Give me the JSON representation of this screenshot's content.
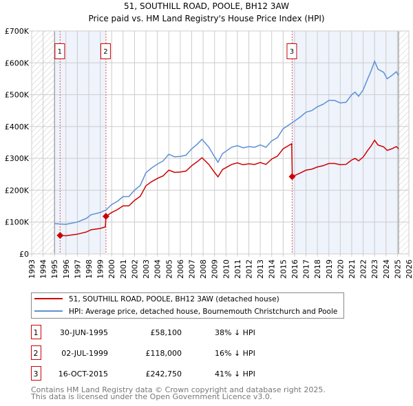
{
  "chart_data": {
    "type": "line",
    "title": "51, SOUTHILL ROAD, POOLE, BH12 3AW",
    "subtitle": "Price paid vs. HM Land Registry's House Price Index (HPI)",
    "xlim": [
      1993,
      2026
    ],
    "ylim": [
      0,
      700000
    ],
    "x_ticks": [
      "1993",
      "1994",
      "1995",
      "1996",
      "1997",
      "1998",
      "1999",
      "2000",
      "2001",
      "2002",
      "2003",
      "2004",
      "2005",
      "2006",
      "2007",
      "2008",
      "2009",
      "2010",
      "2011",
      "2012",
      "2013",
      "2014",
      "2015",
      "2016",
      "2017",
      "2018",
      "2019",
      "2020",
      "2021",
      "2022",
      "2023",
      "2024",
      "2025",
      "2026"
    ],
    "y_ticks": [
      {
        "v": 0,
        "label": "£0"
      },
      {
        "v": 100000,
        "label": "£100K"
      },
      {
        "v": 200000,
        "label": "£200K"
      },
      {
        "v": 300000,
        "label": "£300K"
      },
      {
        "v": 400000,
        "label": "£400K"
      },
      {
        "v": 500000,
        "label": "£500K"
      },
      {
        "v": 600000,
        "label": "£600K"
      },
      {
        "v": 700000,
        "label": "£700K"
      }
    ],
    "grid": true,
    "hatched_ranges": [
      [
        1993,
        1995.0
      ],
      [
        2025.1,
        2026
      ]
    ],
    "shaded_ranges": [
      [
        1995.0,
        1999.5
      ],
      [
        2015.8,
        2025.1
      ]
    ],
    "series": [
      {
        "name": "51, SOUTHILL ROAD, POOLE, BH12 3AW (detached house)",
        "color": "#cc0000",
        "x": [
          1995.5,
          1996,
          1997,
          1997.8,
          1998.2,
          1999,
          1999.45,
          1999.5,
          2000,
          2000.5,
          2001,
          2001.5,
          2002,
          2002.5,
          2003,
          2003.5,
          2004,
          2004.5,
          2005,
          2005.5,
          2006,
          2006.5,
          2007,
          2007.5,
          2007.9,
          2008.5,
          2009,
          2009.3,
          2009.7,
          2010.5,
          2011,
          2011.5,
          2012,
          2012.5,
          2013,
          2013.5,
          2014,
          2014.5,
          2015,
          2015.75,
          2015.8,
          2016.5,
          2017,
          2017.5,
          2018,
          2018.5,
          2019,
          2019.5,
          2020,
          2020.5,
          2021,
          2021.3,
          2021.6,
          2022,
          2022.4,
          2022.7,
          2023,
          2023.3,
          2023.8,
          2024.1,
          2024.5,
          2024.9,
          2025.1
        ],
        "y": [
          58.1,
          57,
          62,
          69,
          76,
          80,
          85,
          118,
          130,
          139,
          151,
          151,
          168,
          181,
          214,
          227,
          237,
          245,
          263,
          256,
          257,
          260,
          277,
          290,
          302,
          281,
          256,
          242,
          265,
          281,
          286,
          280,
          283,
          281,
          287,
          281,
          298,
          307,
          330,
          346,
          242.75,
          254,
          263,
          266,
          273,
          277,
          284,
          284,
          280,
          281,
          295,
          300,
          292,
          304,
          325,
          339,
          357,
          342,
          336,
          325,
          330,
          337,
          330
        ]
      },
      {
        "name": "HPI: Average price, detached house, Bournemouth Christchurch and Poole",
        "color": "#5b8fd4",
        "x": [
          1995.0,
          1996,
          1997,
          1997.8,
          1998.2,
          1999,
          1999.5,
          2000,
          2000.5,
          2001,
          2001.5,
          2002,
          2002.5,
          2003,
          2003.5,
          2004,
          2004.5,
          2005,
          2005.5,
          2006,
          2006.5,
          2007,
          2007.5,
          2007.9,
          2008.5,
          2009,
          2009.3,
          2009.7,
          2010.5,
          2011,
          2011.5,
          2012,
          2012.5,
          2013,
          2013.5,
          2014,
          2014.5,
          2015,
          2015.8,
          2016.5,
          2017,
          2017.5,
          2018,
          2018.5,
          2019,
          2019.5,
          2020,
          2020.5,
          2021,
          2021.3,
          2021.6,
          2022,
          2022.4,
          2022.7,
          2023,
          2023.3,
          2023.8,
          2024.1,
          2024.5,
          2024.9,
          2025.1
        ],
        "y": [
          95,
          93,
          100,
          112,
          123,
          130,
          138,
          155,
          165,
          180,
          180,
          200,
          215,
          255,
          270,
          282,
          292,
          313,
          305,
          306,
          310,
          330,
          345,
          360,
          335,
          305,
          288,
          315,
          335,
          340,
          333,
          337,
          335,
          342,
          335,
          355,
          365,
          393,
          412,
          430,
          445,
          450,
          462,
          470,
          482,
          482,
          474,
          476,
          500,
          508,
          495,
          515,
          550,
          575,
          605,
          580,
          570,
          550,
          560,
          572,
          560
        ]
      }
    ],
    "y_units": "thousands GBP",
    "sales": [
      {
        "num": "1",
        "x": 1995.49,
        "price": 58100,
        "date": "30-JUN-1995",
        "price_label": "£58,100",
        "hpi": "38% ↓ HPI"
      },
      {
        "num": "2",
        "x": 1999.5,
        "price": 118000,
        "date": "02-JUL-1999",
        "price_label": "£118,000",
        "hpi": "16% ↓ HPI"
      },
      {
        "num": "3",
        "x": 2015.79,
        "price": 242750,
        "date": "16-OCT-2015",
        "price_label": "£242,750",
        "hpi": "41% ↓ HPI"
      }
    ]
  },
  "footer": {
    "line1": "Contains HM Land Registry data © Crown copyright and database right 2025.",
    "line2": "This data is licensed under the Open Government Licence v3.0."
  }
}
